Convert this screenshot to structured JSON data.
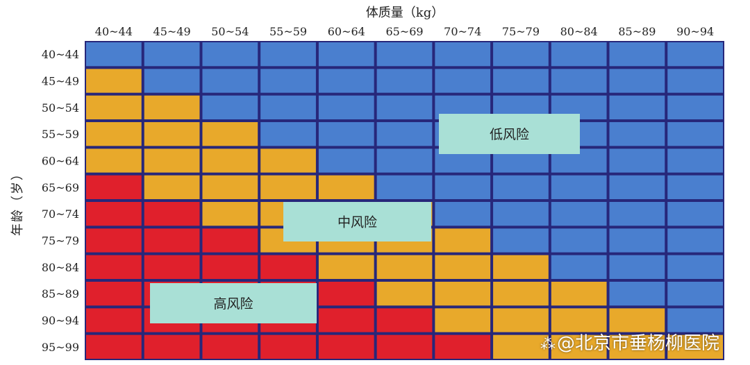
{
  "chart_data": {
    "type": "heatmap",
    "xlabel": "体质量（kg）",
    "ylabel": "年龄（岁）",
    "x_categories": [
      "40~44",
      "45~49",
      "50~54",
      "55~59",
      "60~64",
      "65~69",
      "70~74",
      "75~79",
      "80~84",
      "85~89",
      "90~94"
    ],
    "y_categories": [
      "40~44",
      "45~49",
      "50~54",
      "55~59",
      "60~64",
      "65~69",
      "70~74",
      "75~79",
      "80~84",
      "85~89",
      "90~94",
      "95~99"
    ],
    "values": [
      [
        "低",
        "低",
        "低",
        "低",
        "低",
        "低",
        "低",
        "低",
        "低",
        "低",
        "低"
      ],
      [
        "中",
        "低",
        "低",
        "低",
        "低",
        "低",
        "低",
        "低",
        "低",
        "低",
        "低"
      ],
      [
        "中",
        "中",
        "低",
        "低",
        "低",
        "低",
        "低",
        "低",
        "低",
        "低",
        "低"
      ],
      [
        "中",
        "中",
        "中",
        "低",
        "低",
        "低",
        "低",
        "低",
        "低",
        "低",
        "低"
      ],
      [
        "中",
        "中",
        "中",
        "中",
        "低",
        "低",
        "低",
        "低",
        "低",
        "低",
        "低"
      ],
      [
        "高",
        "中",
        "中",
        "中",
        "中",
        "低",
        "低",
        "低",
        "低",
        "低",
        "低"
      ],
      [
        "高",
        "高",
        "中",
        "中",
        "中",
        "中",
        "低",
        "低",
        "低",
        "低",
        "低"
      ],
      [
        "高",
        "高",
        "高",
        "中",
        "中",
        "中",
        "中",
        "低",
        "低",
        "低",
        "低"
      ],
      [
        "高",
        "高",
        "高",
        "高",
        "中",
        "中",
        "中",
        "中",
        "低",
        "低",
        "低"
      ],
      [
        "高",
        "高",
        "高",
        "高",
        "高",
        "中",
        "中",
        "中",
        "中",
        "低",
        "低"
      ],
      [
        "高",
        "高",
        "高",
        "高",
        "高",
        "高",
        "中",
        "中",
        "中",
        "中",
        "低"
      ],
      [
        "高",
        "高",
        "高",
        "高",
        "高",
        "高",
        "高",
        "中",
        "中",
        "中",
        "中"
      ]
    ],
    "annotations": [
      {
        "text": "低风险",
        "level": "低"
      },
      {
        "text": "中风险",
        "level": "中"
      },
      {
        "text": "高风险",
        "level": "高"
      }
    ],
    "colors": {
      "低": "#4a7fcf",
      "中": "#e8a92b",
      "高": "#e0202c",
      "grid": "#27277a",
      "label_box": "#a9e0d6"
    },
    "grid": true
  },
  "watermark": {
    "logo": "⁂",
    "text": "@北京市垂杨柳医院"
  }
}
